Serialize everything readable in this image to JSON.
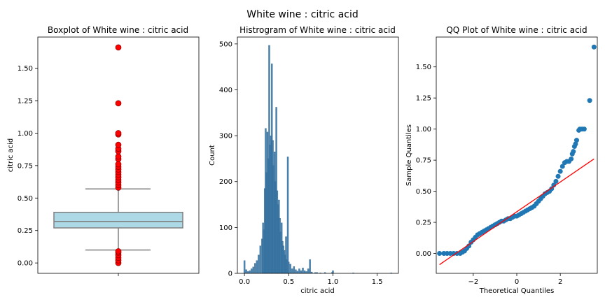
{
  "figure": {
    "suptitle": "White wine : citric acid"
  },
  "colors": {
    "box_fill": "#add8e6",
    "box_edge": "#808080",
    "outlier_fill": "#ff0000",
    "hist_bar": "#3a78a8",
    "qq_point": "#1f77b4",
    "qq_line": "#ff0000"
  },
  "chart_data": [
    {
      "type": "box",
      "title": "Boxplot of White wine : citric acid",
      "ylabel": "citric acid",
      "xlabel": "",
      "ylim": [
        -0.08,
        1.74
      ],
      "yticks": [
        0.0,
        0.25,
        0.5,
        0.75,
        1.0,
        1.25,
        1.5
      ],
      "ytick_labels": [
        "0.00",
        "0.25",
        "0.50",
        "0.75",
        "1.00",
        "1.25",
        "1.50"
      ],
      "stats": {
        "whisker_low": 0.1,
        "q1": 0.27,
        "median": 0.32,
        "q3": 0.39,
        "whisker_high": 0.57
      },
      "outliers": [
        0.0,
        0.02,
        0.04,
        0.06,
        0.08,
        0.09,
        0.58,
        0.6,
        0.62,
        0.64,
        0.66,
        0.68,
        0.7,
        0.72,
        0.74,
        0.76,
        0.8,
        0.82,
        0.86,
        0.88,
        0.91,
        0.99,
        1.0,
        1.23,
        1.66
      ]
    },
    {
      "type": "bar",
      "title": "Histrogram of White wine : citric acid",
      "xlabel": "citric acid",
      "ylabel": "Count",
      "xlim": [
        -0.08,
        1.74
      ],
      "ylim": [
        0,
        515
      ],
      "xticks": [
        0.0,
        0.5,
        1.0,
        1.5
      ],
      "xtick_labels": [
        "0.0",
        "0.5",
        "1.0",
        "1.5"
      ],
      "yticks": [
        0,
        100,
        200,
        300,
        400,
        500
      ],
      "ytick_labels": [
        "0",
        "100",
        "200",
        "300",
        "400",
        "500"
      ],
      "bin_width": 0.0166,
      "bins": [
        {
          "x": 0.0,
          "count": 28
        },
        {
          "x": 0.02,
          "count": 8
        },
        {
          "x": 0.04,
          "count": 4
        },
        {
          "x": 0.06,
          "count": 6
        },
        {
          "x": 0.08,
          "count": 10
        },
        {
          "x": 0.1,
          "count": 14
        },
        {
          "x": 0.12,
          "count": 22
        },
        {
          "x": 0.14,
          "count": 28
        },
        {
          "x": 0.16,
          "count": 40
        },
        {
          "x": 0.18,
          "count": 60
        },
        {
          "x": 0.2,
          "count": 75
        },
        {
          "x": 0.21,
          "count": 110
        },
        {
          "x": 0.22,
          "count": 95
        },
        {
          "x": 0.23,
          "count": 185
        },
        {
          "x": 0.24,
          "count": 316
        },
        {
          "x": 0.25,
          "count": 220
        },
        {
          "x": 0.26,
          "count": 308
        },
        {
          "x": 0.27,
          "count": 250
        },
        {
          "x": 0.28,
          "count": 497
        },
        {
          "x": 0.29,
          "count": 280
        },
        {
          "x": 0.3,
          "count": 300
        },
        {
          "x": 0.31,
          "count": 457
        },
        {
          "x": 0.32,
          "count": 290
        },
        {
          "x": 0.33,
          "count": 235
        },
        {
          "x": 0.34,
          "count": 265
        },
        {
          "x": 0.35,
          "count": 200
        },
        {
          "x": 0.36,
          "count": 362
        },
        {
          "x": 0.37,
          "count": 180
        },
        {
          "x": 0.38,
          "count": 150
        },
        {
          "x": 0.39,
          "count": 160
        },
        {
          "x": 0.4,
          "count": 120
        },
        {
          "x": 0.41,
          "count": 90
        },
        {
          "x": 0.42,
          "count": 110
        },
        {
          "x": 0.43,
          "count": 70
        },
        {
          "x": 0.44,
          "count": 60
        },
        {
          "x": 0.45,
          "count": 50
        },
        {
          "x": 0.46,
          "count": 40
        },
        {
          "x": 0.47,
          "count": 80
        },
        {
          "x": 0.48,
          "count": 30
        },
        {
          "x": 0.49,
          "count": 254
        },
        {
          "x": 0.5,
          "count": 25
        },
        {
          "x": 0.52,
          "count": 20
        },
        {
          "x": 0.54,
          "count": 10
        },
        {
          "x": 0.56,
          "count": 15
        },
        {
          "x": 0.58,
          "count": 8
        },
        {
          "x": 0.6,
          "count": 5
        },
        {
          "x": 0.62,
          "count": 10
        },
        {
          "x": 0.64,
          "count": 6
        },
        {
          "x": 0.66,
          "count": 12
        },
        {
          "x": 0.68,
          "count": 6
        },
        {
          "x": 0.7,
          "count": 4
        },
        {
          "x": 0.72,
          "count": 10
        },
        {
          "x": 0.74,
          "count": 30
        },
        {
          "x": 0.76,
          "count": 3
        },
        {
          "x": 0.8,
          "count": 2
        },
        {
          "x": 0.82,
          "count": 2
        },
        {
          "x": 0.86,
          "count": 1
        },
        {
          "x": 0.91,
          "count": 2
        },
        {
          "x": 0.99,
          "count": 2
        },
        {
          "x": 1.0,
          "count": 6
        },
        {
          "x": 1.23,
          "count": 1
        },
        {
          "x": 1.66,
          "count": 1
        }
      ]
    },
    {
      "type": "scatter",
      "title": "QQ Plot of White wine : citric acid",
      "xlabel": "Theoretical Quantiles",
      "ylabel": "Sample Quantiles",
      "xlim": [
        -3.7,
        3.7
      ],
      "ylim": [
        -0.16,
        1.74
      ],
      "xticks": [
        -2,
        0,
        2
      ],
      "xtick_labels": [
        "−2",
        "0",
        "2"
      ],
      "yticks": [
        0.0,
        0.25,
        0.5,
        0.75,
        1.0,
        1.25,
        1.5
      ],
      "ytick_labels": [
        "0.00",
        "0.25",
        "0.50",
        "0.75",
        "1.00",
        "1.25",
        "1.50"
      ],
      "points": [
        [
          -3.55,
          0.0
        ],
        [
          -3.35,
          0.0
        ],
        [
          -3.2,
          0.0
        ],
        [
          -3.05,
          0.0
        ],
        [
          -2.9,
          0.0
        ],
        [
          -2.75,
          0.0
        ],
        [
          -2.6,
          0.0
        ],
        [
          -2.5,
          0.01
        ],
        [
          -2.4,
          0.02
        ],
        [
          -2.3,
          0.04
        ],
        [
          -2.2,
          0.06
        ],
        [
          -2.1,
          0.09
        ],
        [
          -2.0,
          0.11
        ],
        [
          -1.9,
          0.13
        ],
        [
          -1.8,
          0.15
        ],
        [
          -1.7,
          0.16
        ],
        [
          -1.6,
          0.17
        ],
        [
          -1.5,
          0.18
        ],
        [
          -1.4,
          0.19
        ],
        [
          -1.3,
          0.2
        ],
        [
          -1.2,
          0.21
        ],
        [
          -1.1,
          0.22
        ],
        [
          -1.0,
          0.23
        ],
        [
          -0.9,
          0.24
        ],
        [
          -0.8,
          0.25
        ],
        [
          -0.7,
          0.26
        ],
        [
          -0.6,
          0.26
        ],
        [
          -0.5,
          0.27
        ],
        [
          -0.4,
          0.28
        ],
        [
          -0.3,
          0.28
        ],
        [
          -0.2,
          0.29
        ],
        [
          -0.1,
          0.3
        ],
        [
          0.0,
          0.3
        ],
        [
          0.1,
          0.31
        ],
        [
          0.2,
          0.32
        ],
        [
          0.3,
          0.33
        ],
        [
          0.4,
          0.34
        ],
        [
          0.5,
          0.35
        ],
        [
          0.6,
          0.36
        ],
        [
          0.7,
          0.37
        ],
        [
          0.8,
          0.38
        ],
        [
          0.9,
          0.4
        ],
        [
          1.0,
          0.42
        ],
        [
          1.1,
          0.44
        ],
        [
          1.2,
          0.46
        ],
        [
          1.3,
          0.48
        ],
        [
          1.4,
          0.49
        ],
        [
          1.5,
          0.5
        ],
        [
          1.6,
          0.52
        ],
        [
          1.7,
          0.55
        ],
        [
          1.8,
          0.58
        ],
        [
          1.9,
          0.62
        ],
        [
          2.0,
          0.66
        ],
        [
          2.1,
          0.7
        ],
        [
          2.2,
          0.73
        ],
        [
          2.3,
          0.74
        ],
        [
          2.4,
          0.74
        ],
        [
          2.5,
          0.76
        ],
        [
          2.55,
          0.8
        ],
        [
          2.6,
          0.82
        ],
        [
          2.65,
          0.86
        ],
        [
          2.7,
          0.88
        ],
        [
          2.75,
          0.91
        ],
        [
          2.85,
          0.99
        ],
        [
          2.9,
          1.0
        ],
        [
          3.0,
          1.0
        ],
        [
          3.1,
          1.0
        ],
        [
          3.35,
          1.23
        ],
        [
          3.55,
          1.66
        ]
      ],
      "fit_line": [
        [
          -3.55,
          -0.09
        ],
        [
          3.55,
          0.76
        ]
      ]
    }
  ]
}
